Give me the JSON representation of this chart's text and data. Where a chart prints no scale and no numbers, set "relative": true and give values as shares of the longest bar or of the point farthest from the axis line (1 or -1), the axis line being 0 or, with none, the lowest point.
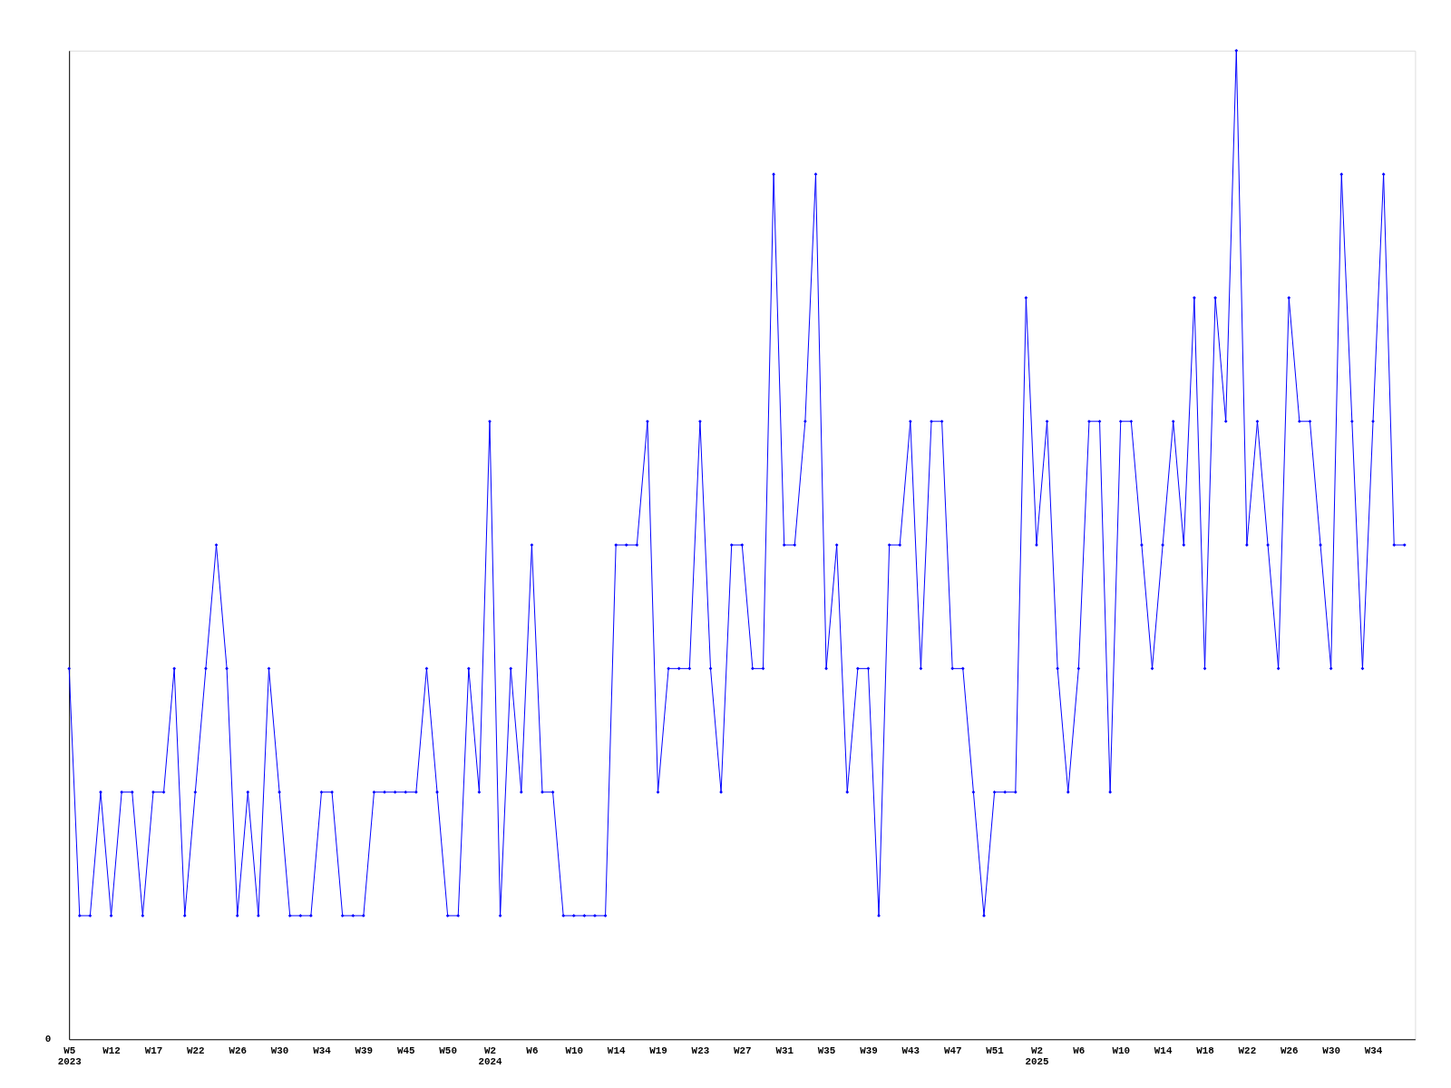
{
  "chart_data": {
    "type": "line",
    "relative": true,
    "marker": "diamond",
    "line_style": "solid",
    "grid": false,
    "categories": [
      "W5\n2023",
      null,
      null,
      null,
      "W12",
      null,
      null,
      null,
      "W17",
      null,
      null,
      null,
      "W22",
      null,
      null,
      null,
      "W26",
      null,
      null,
      null,
      "W30",
      null,
      null,
      null,
      "W34",
      null,
      null,
      null,
      "W39",
      null,
      null,
      null,
      "W45",
      null,
      null,
      null,
      "W50",
      null,
      null,
      null,
      "W2\n2024",
      null,
      null,
      null,
      "W6",
      null,
      null,
      null,
      "W10",
      null,
      null,
      null,
      "W14",
      null,
      null,
      null,
      "W19",
      null,
      null,
      null,
      "W23",
      null,
      null,
      null,
      "W27",
      null,
      null,
      null,
      "W31",
      null,
      null,
      null,
      "W35",
      null,
      null,
      null,
      "W39",
      null,
      null,
      null,
      "W43",
      null,
      null,
      null,
      "W47",
      null,
      null,
      null,
      "W51",
      null,
      null,
      null,
      "W2\n2025",
      null,
      null,
      null,
      "W6",
      null,
      null,
      null,
      "W10",
      null,
      null,
      null,
      "W14",
      null,
      null,
      null,
      "W18",
      null,
      null,
      null,
      "W22",
      null,
      null,
      null,
      "W26",
      null,
      null,
      null,
      "W30",
      null,
      null,
      null,
      "W34",
      null,
      null,
      null
    ],
    "series": [
      {
        "color": "#0000ff",
        "values": [
          0.375,
          0.125,
          0.125,
          0.25,
          0.125,
          0.25,
          0.25,
          0.125,
          0.25,
          0.25,
          0.375,
          0.125,
          0.25,
          0.375,
          0.5,
          0.375,
          0.125,
          0.25,
          0.125,
          0.375,
          0.25,
          0.125,
          0.125,
          0.125,
          0.25,
          0.25,
          0.125,
          0.125,
          0.125,
          0.25,
          0.25,
          0.25,
          0.25,
          0.25,
          0.375,
          0.25,
          0.125,
          0.125,
          0.375,
          0.25,
          0.625,
          0.125,
          0.375,
          0.25,
          0.5,
          0.25,
          0.25,
          0.125,
          0.125,
          0.125,
          0.125,
          0.125,
          0.5,
          0.5,
          0.5,
          0.625,
          0.25,
          0.375,
          0.375,
          0.375,
          0.625,
          0.375,
          0.25,
          0.5,
          0.5,
          0.375,
          0.375,
          0.875,
          0.5,
          0.5,
          0.625,
          0.875,
          0.375,
          0.5,
          0.25,
          0.375,
          0.375,
          0.125,
          0.5,
          0.5,
          0.625,
          0.375,
          0.625,
          0.625,
          0.375,
          0.375,
          0.25,
          0.125,
          0.25,
          0.25,
          0.25,
          0.75,
          0.5,
          0.625,
          0.375,
          0.25,
          0.375,
          0.625,
          0.625,
          0.25,
          0.625,
          0.625,
          0.5,
          0.375,
          0.5,
          0.625,
          0.5,
          0.75,
          0.375,
          0.75,
          0.625,
          1,
          0.5,
          0.625,
          0.5,
          0.375,
          0.75,
          0.625,
          0.625,
          0.5,
          0.375,
          0.875,
          0.625,
          0.375,
          0.625,
          0.875,
          0.5,
          0.5
        ]
      }
    ],
    "annotations": [
      "0"
    ]
  }
}
